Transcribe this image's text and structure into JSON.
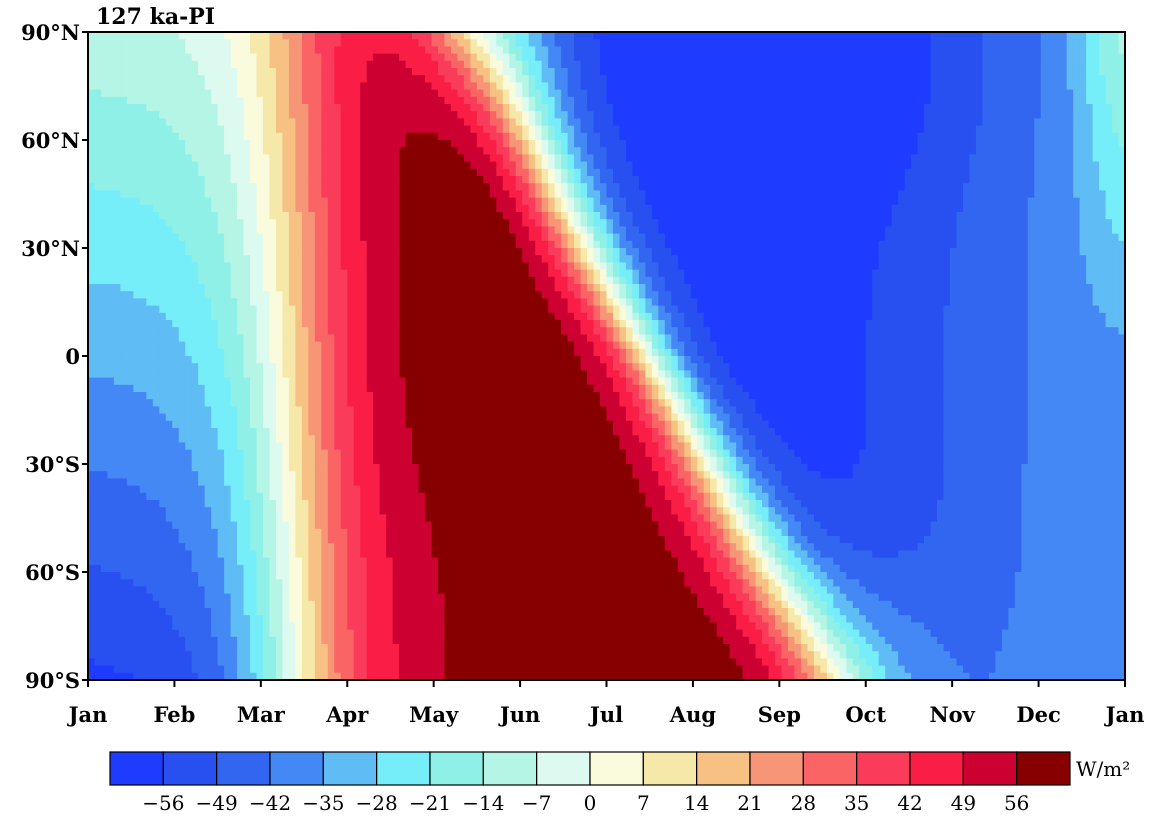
{
  "chart_data": {
    "type": "heatmap",
    "title": "127 ka-PI",
    "xlabel": "",
    "ylabel": "",
    "x_tick_labels": [
      "Jan",
      "Feb",
      "Mar",
      "Apr",
      "May",
      "Jun",
      "Jul",
      "Aug",
      "Sep",
      "Oct",
      "Nov",
      "Dec",
      "Jan"
    ],
    "y_tick_labels": [
      "90°N",
      "60°N",
      "30°N",
      "0",
      "30°S",
      "60°S",
      "90°S"
    ],
    "y_tick_values": [
      90,
      60,
      30,
      0,
      -30,
      -60,
      -90
    ],
    "ylim": [
      -90,
      90
    ],
    "xlim": [
      0,
      12
    ],
    "colorbar": {
      "unit": "W/m²",
      "levels": [
        -56,
        -49,
        -42,
        -35,
        -28,
        -21,
        -14,
        -7,
        0,
        7,
        14,
        21,
        28,
        35,
        42,
        49,
        56
      ],
      "tick_labels": [
        "−56",
        "−49",
        "−42",
        "−35",
        "−28",
        "−21",
        "−14",
        "−7",
        "0",
        "7",
        "14",
        "21",
        "28",
        "35",
        "42",
        "49",
        "56"
      ],
      "colors": [
        "#1e3cff",
        "#2850f0",
        "#3366f0",
        "#4488f5",
        "#5fbcf5",
        "#76eefa",
        "#8ef0e6",
        "#b4f5e6",
        "#dcfaf0",
        "#fafadc",
        "#f6e8a8",
        "#f7c184",
        "#f79676",
        "#fa6464",
        "#fa3c5a",
        "#fa1e46",
        "#cd0032",
        "#870000"
      ]
    },
    "grid": false
  }
}
